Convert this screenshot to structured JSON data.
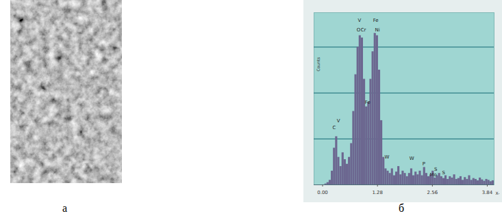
{
  "figure": {
    "panel_labels": [
      "а",
      "б"
    ]
  },
  "chart_data": {
    "type": "histogram",
    "ylabel": "Counts",
    "xlabel": "X-",
    "color": "#6c6790",
    "bins": [
      0.0,
      0.05,
      0.1,
      0.15,
      0.2,
      0.25,
      0.3,
      0.35,
      0.4,
      0.45,
      0.5,
      0.55,
      0.6,
      0.65,
      0.7,
      0.75,
      0.8,
      0.85,
      0.9,
      0.95,
      1.0,
      1.05,
      1.1,
      1.15,
      1.2,
      1.25,
      1.3,
      1.35,
      1.4,
      1.45,
      1.5,
      1.55,
      1.6,
      1.65,
      1.7,
      1.75,
      1.8,
      1.85,
      1.9,
      1.95,
      2.0,
      2.05,
      2.1,
      2.15,
      2.2,
      2.25,
      2.3,
      2.35,
      2.4,
      2.45,
      2.5,
      2.55,
      2.6,
      2.65,
      2.7,
      2.75,
      2.8,
      2.85,
      2.9,
      2.95,
      3.0,
      3.05,
      3.1,
      3.15,
      3.2,
      3.25,
      3.3,
      3.35,
      3.4,
      3.45,
      3.5,
      3.55,
      3.6,
      3.65,
      3.7,
      3.75,
      3.8,
      3.85,
      3.9,
      3.95,
      4.0
    ],
    "values": [
      0,
      2,
      5,
      10,
      30,
      80,
      105,
      60,
      40,
      70,
      55,
      45,
      60,
      90,
      160,
      240,
      300,
      325,
      320,
      230,
      170,
      180,
      230,
      290,
      330,
      325,
      250,
      140,
      60,
      35,
      30,
      25,
      35,
      20,
      28,
      40,
      22,
      30,
      25,
      18,
      25,
      35,
      20,
      28,
      22,
      30,
      20,
      38,
      25,
      18,
      22,
      30,
      15,
      20,
      25,
      18,
      14,
      20,
      12,
      18,
      15,
      22,
      12,
      14,
      18,
      10,
      16,
      12,
      20,
      10,
      14,
      12,
      9,
      15,
      11,
      8,
      12,
      10,
      7,
      9
    ],
    "xlim": [
      -0.2,
      4.0
    ],
    "xticks": [
      {
        "value": 0,
        "label": "0.00"
      },
      1.28,
      2.56,
      3.84
    ],
    "ylim": [
      0,
      375
    ],
    "yticks": [
      100,
      200,
      300
    ],
    "grid": "y",
    "tick_labels": "x",
    "annotations": [
      {
        "text": "V",
        "x": 0.86,
        "y": 358
      },
      {
        "text": "O",
        "x": 0.84,
        "y": 338
      },
      {
        "text": "Cr",
        "x": 0.95,
        "y": 338
      },
      {
        "text": "Fe",
        "x": 1.24,
        "y": 358
      },
      {
        "text": "Ni",
        "x": 1.28,
        "y": 338
      },
      {
        "text": "Fe",
        "x": 1.05,
        "y": 180
      },
      {
        "text": "C",
        "x": 0.27,
        "y": 125
      },
      {
        "text": "V",
        "x": 0.37,
        "y": 140
      },
      {
        "text": "W",
        "x": 1.5,
        "y": 60
      },
      {
        "text": "W",
        "x": 2.08,
        "y": 58
      },
      {
        "text": "P",
        "x": 2.36,
        "y": 46
      },
      {
        "text": "S",
        "x": 2.64,
        "y": 34
      },
      {
        "text": "Mo",
        "x": 2.58,
        "y": 22
      },
      {
        "text": "S",
        "x": 2.82,
        "y": 26
      }
    ]
  }
}
